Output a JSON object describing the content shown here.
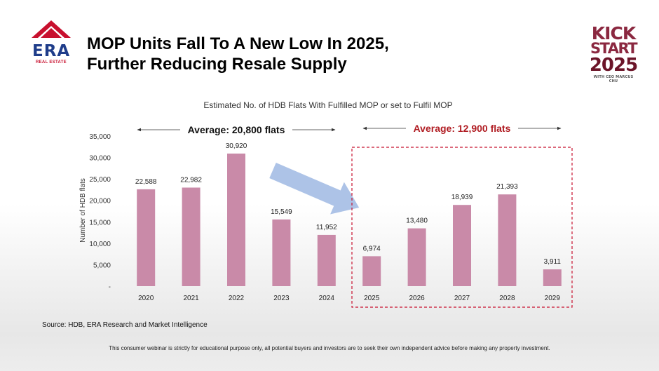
{
  "header": {
    "title_line1": "MOP Units Fall To A New Low In 2025,",
    "title_line2": "Further Reducing Resale Supply"
  },
  "logo": {
    "name": "ERA",
    "sub": "REAL ESTATE",
    "brand_blue": "#1f3d8a",
    "brand_red": "#c8102e"
  },
  "badge": {
    "line1": "KICK",
    "line2": "START",
    "line3": "2025",
    "line4": "WITH CEO MARCUS CHU"
  },
  "chart_data": {
    "type": "bar",
    "title": "Estimated No. of HDB Flats With Fulfilled MOP or set to Fulfil MOP",
    "xlabel": "",
    "ylabel": "Number of HDB flats",
    "categories": [
      "2020",
      "2021",
      "2022",
      "2023",
      "2024",
      "2025",
      "2026",
      "2027",
      "2028",
      "2029"
    ],
    "values": [
      22588,
      22982,
      30920,
      15549,
      11952,
      6974,
      13480,
      18939,
      21393,
      3911
    ],
    "data_labels": [
      "22,588",
      "22,982",
      "30,920",
      "15,549",
      "11,952",
      "6,974",
      "13,480",
      "18,939",
      "21,393",
      "3,911"
    ],
    "ylim": [
      0,
      35000
    ],
    "yticks": [
      0,
      5000,
      10000,
      15000,
      20000,
      25000,
      30000,
      35000
    ],
    "ytick_labels": [
      "-",
      "5,000",
      "10,000",
      "15,000",
      "20,000",
      "25,000",
      "30,000",
      "35,000"
    ],
    "bar_color": "#c98aa8",
    "grid": false,
    "annotations": [
      {
        "text": "Average: 20,800 flats",
        "span": [
          "2020",
          "2024"
        ],
        "color": "#111111"
      },
      {
        "text": "Average: 12,900 flats",
        "span": [
          "2025",
          "2029"
        ],
        "color": "#b01c22"
      }
    ],
    "highlight_box": {
      "span": [
        "2025",
        "2029"
      ],
      "color": "#c8102e"
    },
    "trend_arrow_color": "#9fb8e3"
  },
  "footer": {
    "source": "Source: HDB, ERA Research and Market Intelligence",
    "disclaimer": "This consumer webinar is strictly for educational purpose only, all potential buyers and investors are to seek their own independent advice before making any property investment."
  }
}
